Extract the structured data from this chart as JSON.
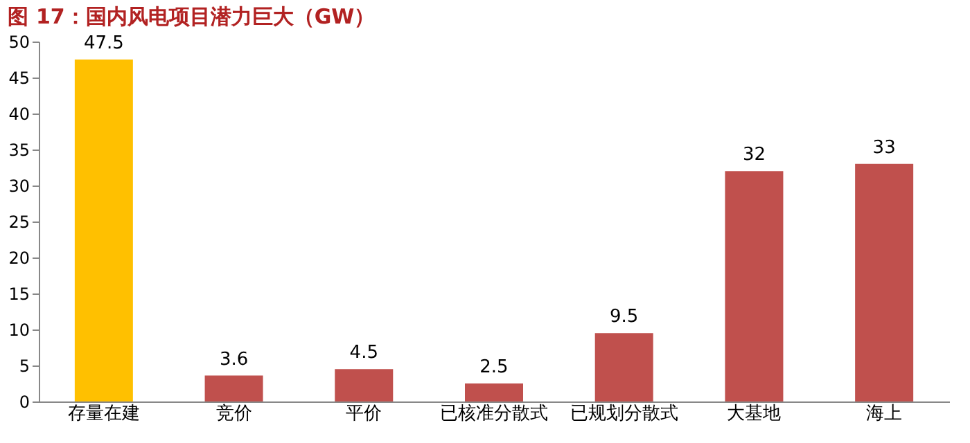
{
  "chart_data": {
    "type": "bar",
    "title": "图 17：国内风电项目潜力巨大（GW）",
    "categories": [
      "存量在建",
      "竞价",
      "平价",
      "已核准分散式",
      "已规划分散式",
      "大基地",
      "海上"
    ],
    "values": [
      47.5,
      3.6,
      4.5,
      2.5,
      9.5,
      32,
      33
    ],
    "colors": [
      "#ffc000",
      "#c0504d",
      "#c0504d",
      "#c0504d",
      "#c0504d",
      "#c0504d",
      "#c0504d"
    ],
    "ylim": [
      0,
      50
    ],
    "yticks": [
      0,
      5,
      10,
      15,
      20,
      25,
      30,
      35,
      40,
      45,
      50
    ],
    "grid": false,
    "data_labels": true
  }
}
